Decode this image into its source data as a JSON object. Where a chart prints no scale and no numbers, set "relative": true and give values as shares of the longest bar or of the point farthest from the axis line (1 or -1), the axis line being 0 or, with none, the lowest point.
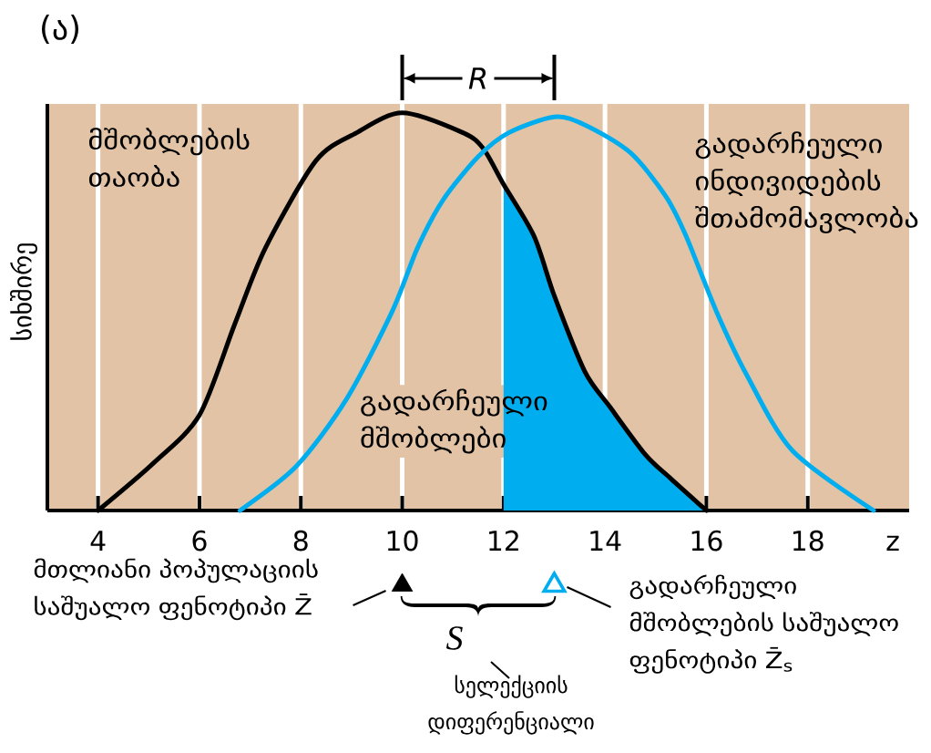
{
  "chart_data": {
    "type": "line",
    "title": "(ა)",
    "xlabel": "z",
    "ylabel": "სიხშირე",
    "relative": true,
    "xlim": [
      3,
      20
    ],
    "xticks": [
      4,
      6,
      8,
      10,
      12,
      14,
      16,
      18
    ],
    "grid": "x",
    "series": [
      {
        "name": "მშობლების თაობა",
        "color": "#000000",
        "x": [
          4,
          5.1,
          6,
          6.7,
          7.3,
          8.3,
          9.1,
          10,
          11.2,
          11.6,
          12,
          12.6,
          13,
          13.6,
          14.1,
          14.8,
          15.3,
          16
        ],
        "values": [
          0,
          0.12,
          0.24,
          0.47,
          0.66,
          0.88,
          0.95,
          1,
          0.95,
          0.91,
          0.82,
          0.69,
          0.54,
          0.35,
          0.26,
          0.14,
          0.08,
          0
        ]
      },
      {
        "name": "გადარჩეული ინდივიდების შთამომავლობა",
        "color": "#00aeef",
        "x": [
          6.8,
          7.9,
          8.9,
          9.8,
          10.3,
          10.8,
          11.5,
          12.1,
          13,
          13.6,
          14.5,
          15.2,
          15.6,
          16.2,
          16.8,
          17.7,
          19.3
        ],
        "values": [
          0,
          0.11,
          0.28,
          0.5,
          0.66,
          0.78,
          0.89,
          0.95,
          0.99,
          0.97,
          0.9,
          0.79,
          0.69,
          0.5,
          0.34,
          0.15,
          0
        ]
      },
      {
        "type": "area",
        "color": "#00aeef",
        "x": [
          12,
          12.6,
          13,
          13.6,
          14.1,
          14.8,
          15.3,
          16
        ],
        "values": [
          0.82,
          0.69,
          0.54,
          0.35,
          0.26,
          0.14,
          0.08,
          0
        ]
      }
    ],
    "annotations": [
      "R",
      "გადარჩეული მშობლები",
      "მთლიანი პოპულაციის საშუალო ფენოტიპი Z̄",
      "გადარჩეული მშობლების საშუალო ფენოტიპი Z̄$_{s}$",
      "S",
      "სელექციის დიფერენციალი"
    ]
  }
}
